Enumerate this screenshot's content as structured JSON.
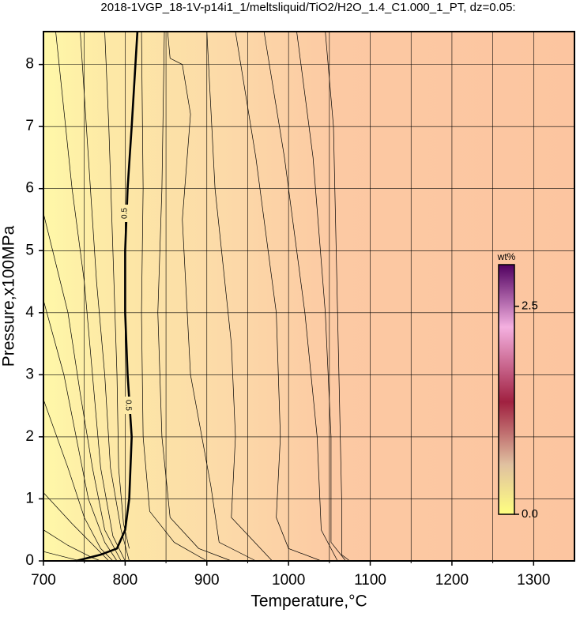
{
  "chart_data": {
    "type": "contour",
    "title": "2018-1VGP_18-1V-p14i1_1/meltsliquid/TiO2/H2O_1.4_C1.000_1_PT, dz=0.05:",
    "x_label": "Temperature,°C",
    "y_label": "Pressure,x100MPa",
    "xlim": [
      700,
      1350
    ],
    "ylim": [
      0,
      8.53
    ],
    "xticks": [
      700,
      800,
      900,
      1000,
      1100,
      1200,
      1300
    ],
    "x_minor_grid": [
      750,
      850,
      950,
      1050,
      1150,
      1250
    ],
    "yticks": [
      0,
      1,
      2,
      3,
      4,
      5,
      6,
      7,
      8
    ],
    "grid": true,
    "contours": [
      {
        "x": [
          700,
          730,
          745
        ],
        "y": [
          0.15,
          0.05,
          0
        ]
      },
      {
        "x": [
          700,
          730,
          760,
          770
        ],
        "y": [
          0.5,
          0.25,
          0.05,
          0
        ]
      },
      {
        "x": [
          700,
          735,
          765,
          780
        ],
        "y": [
          1.1,
          0.6,
          0.2,
          0
        ]
      },
      {
        "x": [
          700,
          730,
          750,
          770,
          785
        ],
        "y": [
          2.6,
          1.5,
          0.7,
          0.2,
          0
        ]
      },
      {
        "x": [
          700,
          725,
          740,
          755,
          775,
          790
        ],
        "y": [
          4.2,
          3,
          2,
          1,
          0.3,
          0
        ]
      },
      {
        "x": [
          700,
          730,
          745,
          760,
          775,
          795
        ],
        "y": [
          5.6,
          4,
          2.7,
          1.5,
          0.5,
          0
        ]
      },
      {
        "x": [
          715,
          735,
          750,
          760,
          770,
          785,
          800
        ],
        "y": [
          8.53,
          6,
          4.5,
          3,
          1.5,
          0.4,
          0
        ]
      },
      {
        "x": [
          745,
          755,
          765,
          775,
          782,
          795,
          805
        ],
        "y": [
          8.53,
          6.5,
          4.5,
          3,
          1.5,
          0.5,
          0
        ]
      },
      {
        "x": [
          775,
          780,
          785,
          790,
          792,
          798,
          805
        ],
        "y": [
          8.53,
          7,
          5,
          3,
          1.5,
          0.6,
          0.2
        ]
      },
      {
        "x": [
          740,
          770,
          790,
          800,
          805,
          808,
          803,
          800,
          800,
          803,
          808,
          815
        ],
        "y": [
          0,
          0.1,
          0.2,
          0.5,
          1,
          2,
          3,
          4,
          5,
          6,
          7,
          8.53
        ],
        "bold": true,
        "labels": [
          "0.5",
          "0.5"
        ]
      },
      {
        "x": [
          820,
          822,
          820,
          822,
          830,
          860,
          900
        ],
        "y": [
          8.53,
          6,
          4,
          2,
          0.8,
          0.3,
          0
        ]
      },
      {
        "x": [
          848,
          845,
          840,
          845,
          855,
          890,
          930
        ],
        "y": [
          8.53,
          6,
          4,
          2,
          0.7,
          0.2,
          0
        ]
      },
      {
        "x": [
          852,
          855,
          870,
          880,
          870,
          880,
          905,
          915,
          960
        ],
        "y": [
          8.53,
          8.1,
          8,
          7.2,
          5.5,
          3,
          1.2,
          0.3,
          0
        ]
      },
      {
        "x": [
          900,
          910,
          930,
          935,
          930,
          980
        ],
        "y": [
          8.53,
          6,
          3.5,
          2,
          0.7,
          0
        ]
      },
      {
        "x": [
          935,
          960,
          985,
          990,
          985,
          1000,
          1040
        ],
        "y": [
          8.53,
          6.5,
          4,
          2,
          0.7,
          0.2,
          0
        ]
      },
      {
        "x": [
          970,
          995,
          1020,
          1035,
          1040,
          1060
        ],
        "y": [
          8.53,
          6.5,
          4,
          2,
          0.5,
          0
        ]
      },
      {
        "x": [
          1010,
          1030,
          1045,
          1052,
          1052,
          1070
        ],
        "y": [
          8.53,
          6.5,
          4,
          2,
          0.3,
          0
        ]
      },
      {
        "x": [
          1045,
          1055,
          1060,
          1065,
          1065,
          1075
        ],
        "y": [
          8.53,
          7,
          4,
          1,
          0.1,
          0
        ]
      }
    ],
    "colorbar": {
      "label": "wt%",
      "lim": [
        0,
        3.0
      ],
      "ticks": [
        {
          "value": 0,
          "label": "0.0"
        },
        {
          "value": 2.5,
          "label": "2.5"
        }
      ]
    }
  }
}
